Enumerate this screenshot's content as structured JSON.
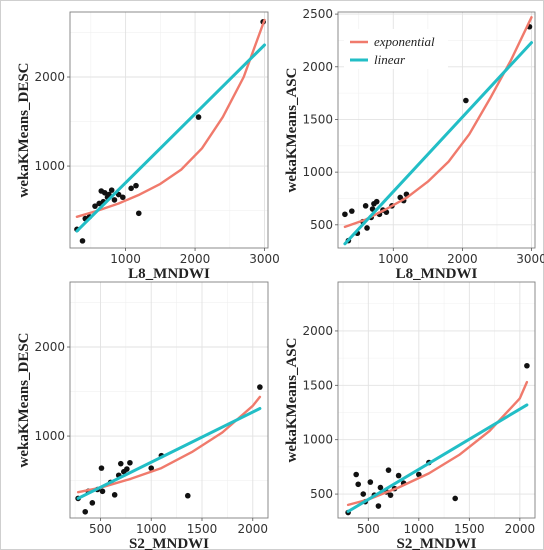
{
  "chart_data": [
    {
      "type": "scatter",
      "xlabel": "L8_MNDWI",
      "ylabel": "wekaKMeans_DESC",
      "xlim": [
        200,
        3050
      ],
      "ylim": [
        80,
        2730
      ],
      "xticks": [
        1000,
        2000,
        3000
      ],
      "yticks": [
        1000,
        2000
      ],
      "x_tick_labels": [
        "1000",
        "2000",
        "3000"
      ],
      "y_tick_labels": [
        "1000",
        "2000"
      ],
      "grid": true,
      "legend": null,
      "points": [
        [
          300,
          290
        ],
        [
          380,
          160
        ],
        [
          420,
          410
        ],
        [
          480,
          430
        ],
        [
          560,
          550
        ],
        [
          620,
          580
        ],
        [
          650,
          720
        ],
        [
          680,
          600
        ],
        [
          700,
          700
        ],
        [
          740,
          650
        ],
        [
          760,
          680
        ],
        [
          800,
          730
        ],
        [
          840,
          620
        ],
        [
          900,
          680
        ],
        [
          960,
          650
        ],
        [
          1080,
          750
        ],
        [
          1150,
          780
        ],
        [
          1190,
          470
        ],
        [
          2050,
          1550
        ],
        [
          2980,
          2620
        ]
      ],
      "series": [
        {
          "name": "exponential",
          "color": "#f07a6c",
          "x": [
            300,
            600,
            900,
            1200,
            1500,
            1800,
            2100,
            2400,
            2700,
            3000
          ],
          "values": [
            430,
            500,
            580,
            680,
            800,
            960,
            1200,
            1550,
            2000,
            2640
          ]
        },
        {
          "name": "linear",
          "color": "#22bec6",
          "x": [
            300,
            3000
          ],
          "values": [
            270,
            2360
          ]
        }
      ]
    },
    {
      "type": "scatter",
      "xlabel": "L8_MNDWI",
      "ylabel": "wekaKMeans_ASC",
      "xlim": [
        200,
        3050
      ],
      "ylim": [
        280,
        2520
      ],
      "xticks": [
        1000,
        2000,
        3000
      ],
      "yticks": [
        500,
        1000,
        1500,
        2000,
        2500
      ],
      "x_tick_labels": [
        "1000",
        "2000",
        "3000"
      ],
      "y_tick_labels": [
        "500",
        "1000",
        "1500",
        "2000",
        "2500"
      ],
      "grid": true,
      "legend": "top-left",
      "points": [
        [
          300,
          600
        ],
        [
          350,
          350
        ],
        [
          400,
          630
        ],
        [
          480,
          420
        ],
        [
          560,
          530
        ],
        [
          600,
          680
        ],
        [
          620,
          470
        ],
        [
          680,
          570
        ],
        [
          700,
          650
        ],
        [
          720,
          700
        ],
        [
          760,
          720
        ],
        [
          800,
          600
        ],
        [
          850,
          640
        ],
        [
          900,
          620
        ],
        [
          980,
          680
        ],
        [
          1100,
          760
        ],
        [
          1150,
          730
        ],
        [
          1190,
          790
        ],
        [
          2050,
          1680
        ],
        [
          2970,
          2380
        ]
      ],
      "series": [
        {
          "name": "exponential",
          "color": "#f07a6c",
          "x": [
            300,
            600,
            900,
            1200,
            1500,
            1800,
            2100,
            2400,
            2700,
            3000
          ],
          "values": [
            480,
            550,
            650,
            760,
            910,
            1100,
            1360,
            1700,
            2060,
            2470
          ]
        },
        {
          "name": "linear",
          "color": "#22bec6",
          "x": [
            300,
            3000
          ],
          "values": [
            320,
            2230
          ]
        }
      ]
    },
    {
      "type": "scatter",
      "xlabel": "S2_MNDWI",
      "ylabel": "wekaKMeans_DESC",
      "xlim": [
        200,
        2150
      ],
      "ylim": [
        80,
        2730
      ],
      "xticks": [
        500,
        1000,
        1500,
        2000
      ],
      "yticks": [
        1000,
        2000
      ],
      "x_tick_labels": [
        "500",
        "1000",
        "1500",
        "2000"
      ],
      "y_tick_labels": [
        "1000",
        "2000"
      ],
      "grid": true,
      "legend": null,
      "points": [
        [
          280,
          300
        ],
        [
          350,
          150
        ],
        [
          380,
          380
        ],
        [
          420,
          250
        ],
        [
          470,
          400
        ],
        [
          520,
          380
        ],
        [
          510,
          640
        ],
        [
          600,
          480
        ],
        [
          640,
          340
        ],
        [
          680,
          560
        ],
        [
          700,
          690
        ],
        [
          730,
          600
        ],
        [
          760,
          630
        ],
        [
          790,
          700
        ],
        [
          1000,
          640
        ],
        [
          1100,
          780
        ],
        [
          1360,
          330
        ],
        [
          2070,
          1550
        ]
      ],
      "series": [
        {
          "name": "exponential",
          "color": "#f07a6c",
          "x": [
            280,
            500,
            800,
            1100,
            1400,
            1700,
            2000,
            2070
          ],
          "values": [
            370,
            420,
            520,
            640,
            820,
            1040,
            1340,
            1440
          ]
        },
        {
          "name": "linear",
          "color": "#22bec6",
          "x": [
            280,
            2070
          ],
          "values": [
            300,
            1310
          ]
        }
      ]
    },
    {
      "type": "scatter",
      "xlabel": "S2_MNDWI",
      "ylabel": "wekaKMeans_ASC",
      "xlim": [
        200,
        2150
      ],
      "ylim": [
        280,
        2450
      ],
      "xticks": [
        500,
        1000,
        1500,
        2000
      ],
      "yticks": [
        500,
        1000,
        1500,
        2000
      ],
      "x_tick_labels": [
        "500",
        "1000",
        "1500",
        "2000"
      ],
      "y_tick_labels": [
        "500",
        "1000",
        "1500",
        "2000"
      ],
      "grid": true,
      "legend": null,
      "points": [
        [
          300,
          330
        ],
        [
          380,
          680
        ],
        [
          400,
          590
        ],
        [
          450,
          500
        ],
        [
          470,
          430
        ],
        [
          520,
          610
        ],
        [
          560,
          490
        ],
        [
          600,
          390
        ],
        [
          620,
          560
        ],
        [
          680,
          520
        ],
        [
          700,
          720
        ],
        [
          720,
          490
        ],
        [
          760,
          550
        ],
        [
          800,
          670
        ],
        [
          850,
          600
        ],
        [
          1000,
          680
        ],
        [
          1100,
          790
        ],
        [
          1360,
          460
        ],
        [
          2070,
          1680
        ]
      ],
      "series": [
        {
          "name": "exponential",
          "color": "#f07a6c",
          "x": [
            300,
            500,
            800,
            1100,
            1400,
            1700,
            2000,
            2070
          ],
          "values": [
            400,
            450,
            560,
            690,
            860,
            1080,
            1380,
            1530
          ]
        },
        {
          "name": "linear",
          "color": "#22bec6",
          "x": [
            300,
            2070
          ],
          "values": [
            340,
            1320
          ]
        }
      ]
    }
  ]
}
